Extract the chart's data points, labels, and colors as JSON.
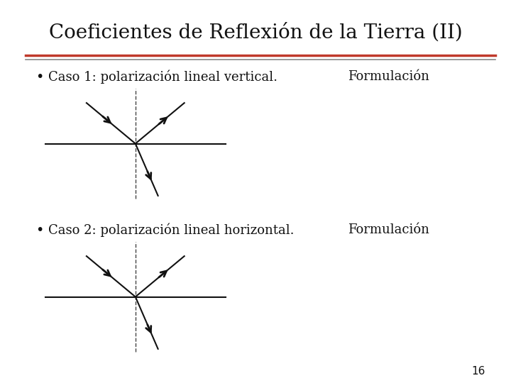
{
  "title": "Coeficientes de Reflexión de la Tierra (II)",
  "slide_bg": "#ffffff",
  "title_fontsize": 20,
  "title_font": "serif",
  "separator_red": "#c0392b",
  "separator_gray": "#888888",
  "bullet1": "Caso 1: polarización lineal vertical.",
  "bullet2": "Caso 2: polarización lineal horizontal.",
  "formulacion": "Formulación",
  "page_number": "16",
  "bullet_fontsize": 13,
  "formulacion_fontsize": 13,
  "arrow_color": "#111111",
  "line_color": "#111111",
  "dashed_color": "#444444"
}
